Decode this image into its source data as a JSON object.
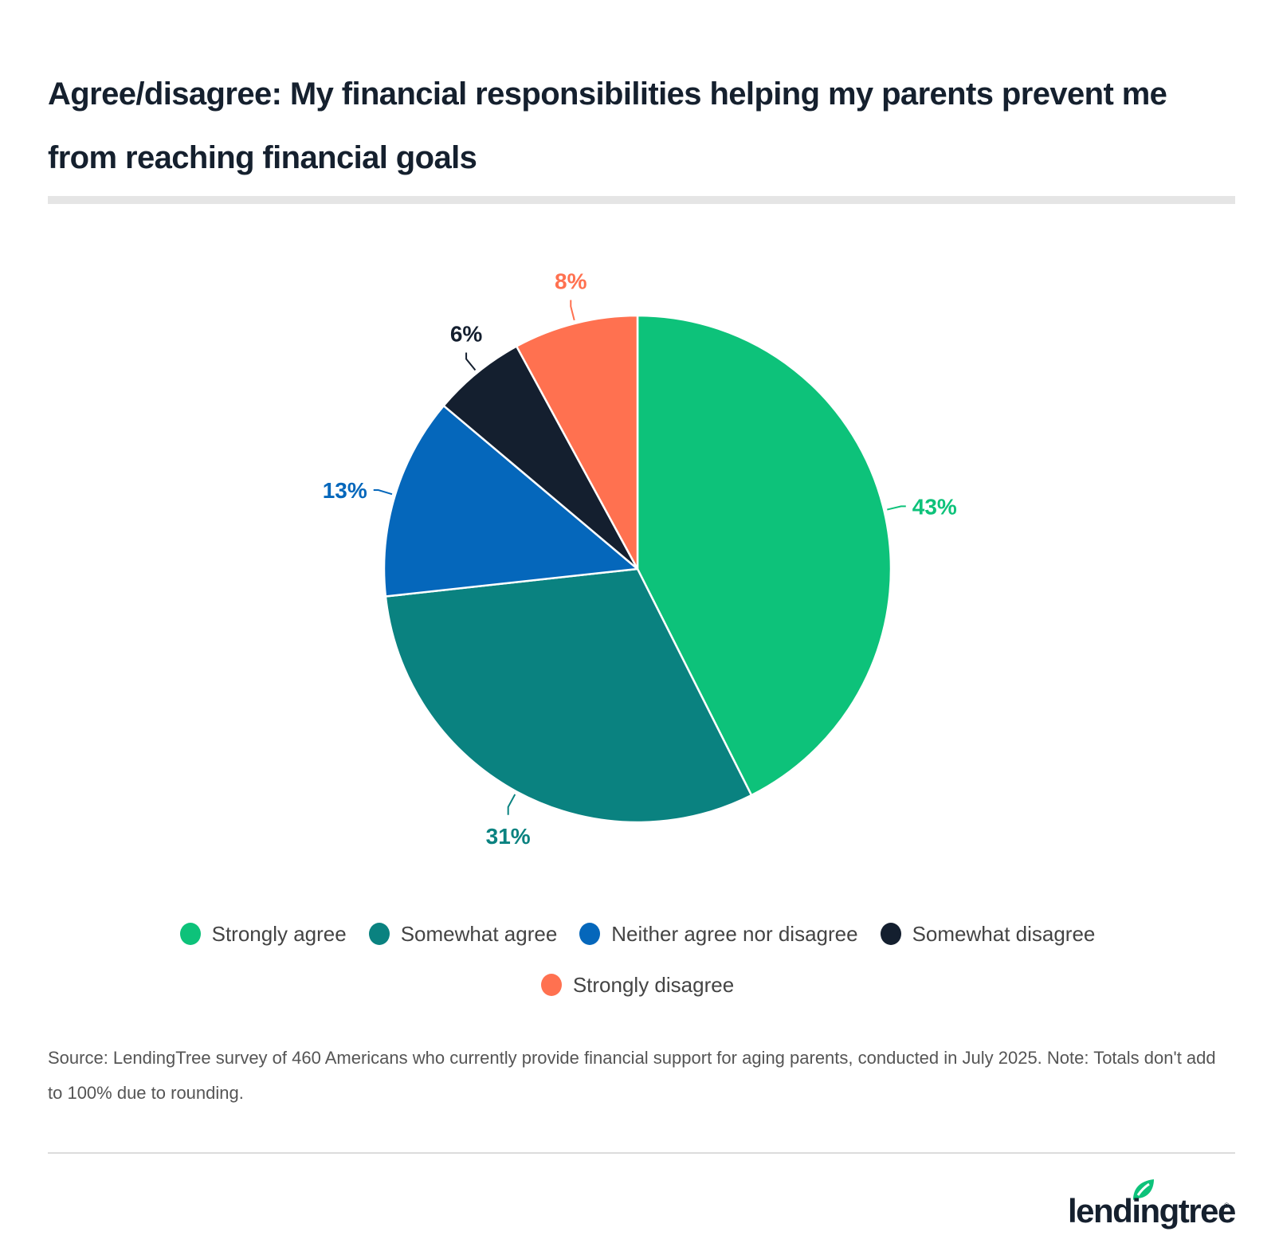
{
  "title": "Agree/disagree: My financial responsibilities helping my parents prevent me from reaching financial goals",
  "chart_data": {
    "type": "pie",
    "title": "Agree/disagree: My financial responsibilities helping my parents prevent me from reaching financial goals",
    "categories": [
      "Strongly agree",
      "Somewhat agree",
      "Neither agree nor disagree",
      "Somewhat disagree",
      "Strongly disagree"
    ],
    "values": [
      43,
      31,
      13,
      6,
      8
    ],
    "labels": [
      "43%",
      "31%",
      "13%",
      "6%",
      "8%"
    ],
    "colors": [
      "#0dc27a",
      "#0a8280",
      "#0567bb",
      "#141f2f",
      "#ff7150"
    ],
    "start_angle": "12 o'clock, clockwise",
    "legend_position": "bottom",
    "note": "Totals don't add to 100% due to rounding"
  },
  "legend": [
    {
      "label": "Strongly agree",
      "color": "#0dc27a"
    },
    {
      "label": "Somewhat agree",
      "color": "#0a8280"
    },
    {
      "label": "Neither agree nor disagree",
      "color": "#0567bb"
    },
    {
      "label": "Somewhat disagree",
      "color": "#141f2f"
    },
    {
      "label": "Strongly disagree",
      "color": "#ff7150"
    }
  ],
  "source": "Source: LendingTree survey of 460 Americans who currently provide financial support for aging parents, conducted in July 2025. Note: Totals don't add to 100% due to rounding.",
  "logo": {
    "text": "lendingtree",
    "registered": "®",
    "leaf_color": "#0dc27a"
  }
}
